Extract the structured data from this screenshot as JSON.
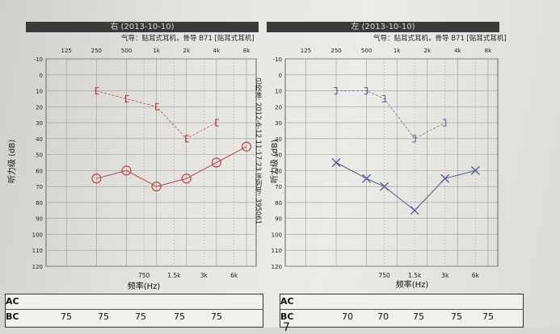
{
  "header": {
    "right_title": "右  (2013-10-10)",
    "left_title": "左  (2013-10-10)",
    "right_subtitle": "气导：贴耳式耳机，骨导 B71 [贴耳式耳机]",
    "left_subtitle": "气导：贴耳式耳机，骨导 B71 [贴耳式耳机]",
    "calibration_note": "已校准: 2012-6-12 11:17:23 序列号: 395061"
  },
  "chart_data": [
    {
      "type": "line",
      "ear": "right",
      "top_ticks": [
        "125",
        "250",
        "500",
        "1k",
        "2k",
        "4k",
        "8k"
      ],
      "bottom_ticks": [
        "750",
        "1.5k",
        "3k",
        "6k"
      ],
      "xlabel": "频率(Hz)",
      "ylabel": "听力级 (dB)",
      "ylim": [
        -10,
        120
      ],
      "yticks": [
        -10,
        0,
        10,
        20,
        30,
        40,
        50,
        60,
        70,
        80,
        90,
        100,
        110,
        120
      ],
      "grid": true,
      "series": [
        {
          "marker": "circle",
          "color": "#b84848",
          "x": [
            "250",
            "500",
            "1k",
            "2k",
            "4k",
            "8k"
          ],
          "values": [
            65,
            60,
            70,
            65,
            55,
            45
          ]
        },
        {
          "marker": "bracket-left",
          "color": "#b84848",
          "dashed": true,
          "x": [
            "250",
            "500",
            "1k",
            "2k",
            "4k"
          ],
          "values": [
            10,
            15,
            20,
            40,
            30
          ]
        }
      ]
    },
    {
      "type": "line",
      "ear": "left",
      "top_ticks": [
        "125",
        "250",
        "500",
        "1k",
        "2k",
        "4k",
        "8k"
      ],
      "bottom_ticks": [
        "750",
        "1.5k",
        "3k",
        "6k"
      ],
      "xlabel": "频率(Hz)",
      "ylabel": "听力级 (dB)",
      "ylim": [
        -10,
        120
      ],
      "yticks": [
        -10,
        0,
        10,
        20,
        30,
        40,
        50,
        60,
        70,
        80,
        90,
        100,
        110,
        120
      ],
      "grid": true,
      "series": [
        {
          "marker": "cross",
          "color": "#4d5a8f",
          "x": [
            "250",
            "500",
            "750",
            "1.5k",
            "3k",
            "6k"
          ],
          "values": [
            55,
            65,
            70,
            85,
            65,
            60
          ]
        },
        {
          "marker": "bracket-right",
          "color": "#6570a0",
          "dashed": true,
          "x": [
            "250",
            "500",
            "750",
            "1.5k",
            "3k"
          ],
          "values": [
            10,
            10,
            15,
            40,
            30
          ]
        }
      ]
    }
  ],
  "table": {
    "ac_label": "AC",
    "bc_label": "BC",
    "right_bc": [
      "75",
      "75",
      "75",
      "75",
      "75"
    ],
    "left_bc": [
      "70",
      "70",
      "75",
      "75",
      "75"
    ]
  },
  "page_number": "7"
}
